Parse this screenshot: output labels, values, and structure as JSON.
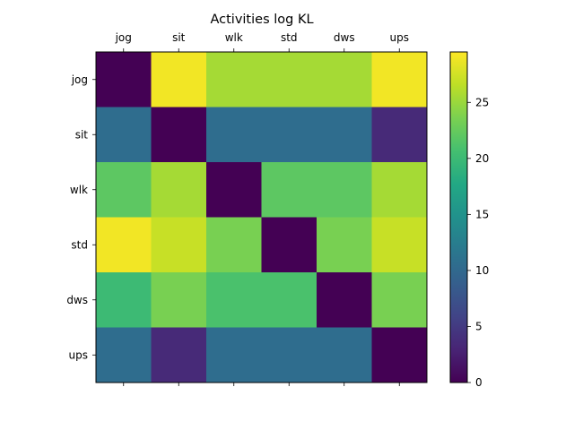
{
  "chart_data": {
    "type": "heatmap",
    "title": "Activities log KL",
    "x_categories": [
      "jog",
      "sit",
      "wlk",
      "std",
      "dws",
      "ups"
    ],
    "y_categories": [
      "jog",
      "sit",
      "wlk",
      "std",
      "dws",
      "ups"
    ],
    "values": [
      [
        0.0,
        29.0,
        25.5,
        25.5,
        25.5,
        29.0
      ],
      [
        10.5,
        0.0,
        10.5,
        10.5,
        10.5,
        3.5
      ],
      [
        22.0,
        25.5,
        0.0,
        22.0,
        22.0,
        25.5
      ],
      [
        29.0,
        27.0,
        23.5,
        0.0,
        23.5,
        27.0
      ],
      [
        20.0,
        23.5,
        21.0,
        21.0,
        0.0,
        23.5
      ],
      [
        10.5,
        3.5,
        10.5,
        10.5,
        10.5,
        0.0
      ]
    ],
    "colorbar": {
      "min": 0,
      "max": 29.5,
      "ticks": [
        0,
        5,
        10,
        15,
        20,
        25
      ],
      "colormap": "viridis"
    },
    "xaxis_position": "top",
    "grid": false
  }
}
